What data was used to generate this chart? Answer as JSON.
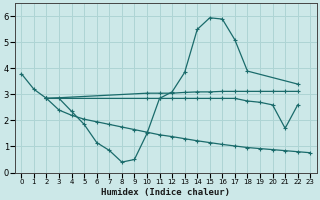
{
  "background_color": "#cce8e8",
  "grid_color": "#aed4d4",
  "line_color": "#1a6b6b",
  "xlabel": "Humidex (Indice chaleur)",
  "xlim": [
    -0.5,
    23.5
  ],
  "ylim": [
    0,
    6.5
  ],
  "yticks": [
    0,
    1,
    2,
    3,
    4,
    5,
    6
  ],
  "xticks": [
    0,
    1,
    2,
    3,
    4,
    5,
    6,
    7,
    8,
    9,
    10,
    11,
    12,
    13,
    14,
    15,
    16,
    17,
    18,
    19,
    20,
    21,
    22,
    23
  ],
  "lines": [
    {
      "x": [
        0,
        1,
        2,
        3,
        4,
        5,
        6,
        7,
        8,
        9,
        10,
        11,
        12,
        13,
        14,
        15,
        16,
        17,
        18,
        22
      ],
      "y": [
        3.8,
        3.2,
        2.85,
        2.85,
        2.35,
        1.85,
        1.15,
        0.85,
        0.4,
        0.5,
        1.5,
        2.85,
        3.1,
        3.85,
        5.5,
        5.95,
        5.9,
        5.1,
        3.9,
        3.4
      ]
    },
    {
      "x": [
        2,
        10,
        11,
        12,
        13,
        14,
        15,
        16,
        17,
        18,
        19,
        20,
        21,
        22
      ],
      "y": [
        2.85,
        3.05,
        3.05,
        3.05,
        3.08,
        3.1,
        3.1,
        3.12,
        3.12,
        3.12,
        3.12,
        3.12,
        3.12,
        3.12
      ]
    },
    {
      "x": [
        2,
        10,
        11,
        12,
        13,
        14,
        15,
        16,
        17,
        18,
        19,
        20,
        21,
        22
      ],
      "y": [
        2.85,
        2.85,
        2.85,
        2.85,
        2.85,
        2.85,
        2.85,
        2.85,
        2.85,
        2.75,
        2.7,
        2.6,
        1.7,
        2.6
      ]
    },
    {
      "x": [
        2,
        3,
        4,
        5,
        6,
        7,
        8,
        9,
        10,
        11,
        12,
        13,
        14,
        15,
        16,
        17,
        18,
        19,
        20,
        21,
        22,
        23
      ],
      "y": [
        2.85,
        2.4,
        2.2,
        2.05,
        1.95,
        1.85,
        1.75,
        1.65,
        1.55,
        1.45,
        1.38,
        1.3,
        1.22,
        1.15,
        1.08,
        1.02,
        0.96,
        0.92,
        0.88,
        0.84,
        0.8,
        0.76
      ]
    }
  ]
}
